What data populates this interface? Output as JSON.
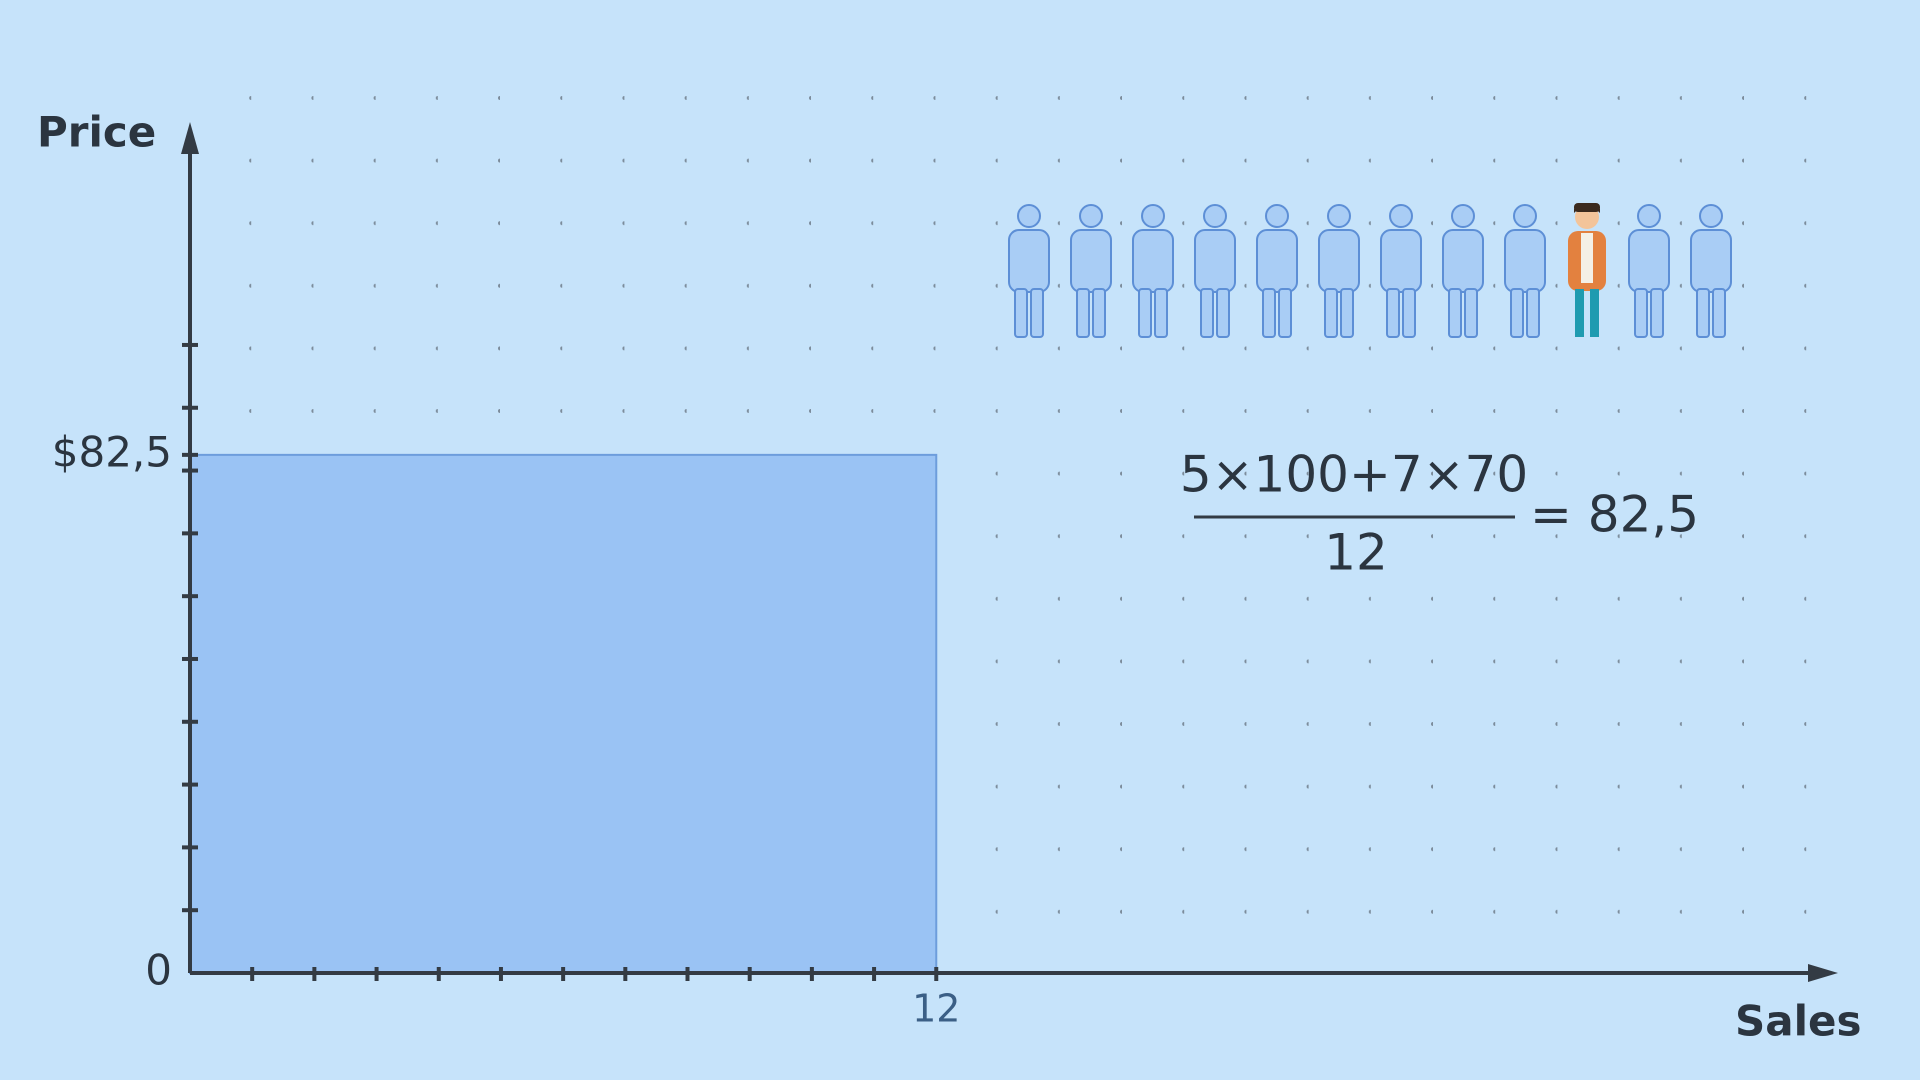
{
  "chart_data": {
    "type": "histogram",
    "xlabel": "Sales",
    "ylabel": "Price",
    "bins": [
      0,
      12
    ],
    "values": [
      82.5
    ],
    "color": "#9ac3f4",
    "xlim": [
      0,
      26.5
    ],
    "ylim": [
      0,
      135.5
    ],
    "xticks": [
      12
    ],
    "xminorticks": [
      1,
      2,
      3,
      4,
      5,
      6,
      7,
      8,
      9,
      10,
      11
    ],
    "yticks": [
      0,
      {
        "value": 82.5,
        "label": "$82,5"
      }
    ],
    "yminorticks": [
      10,
      20,
      30,
      40,
      50,
      60,
      70,
      80,
      90,
      100
    ],
    "grid": true,
    "formula": {
      "numerator": "5×100+7×70",
      "denominator": "12",
      "result": "= 82,5"
    }
  }
}
